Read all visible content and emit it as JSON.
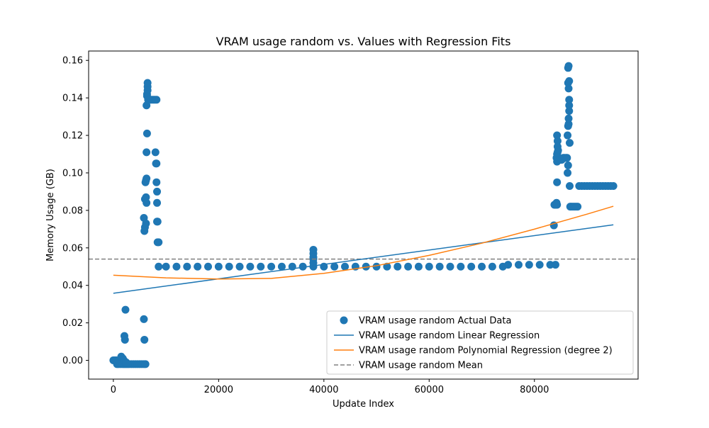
{
  "chart_data": {
    "type": "scatter",
    "title": "VRAM usage random vs. Values with Regression Fits",
    "xlabel": "Update Index",
    "ylabel": "Memory Usage (GB)",
    "xlim": [
      -4700,
      99700
    ],
    "ylim": [
      -0.01,
      0.165
    ],
    "x_ticks": [
      0,
      20000,
      40000,
      60000,
      80000
    ],
    "x_tick_labels": [
      "0",
      "20000",
      "40000",
      "60000",
      "80000"
    ],
    "y_ticks": [
      0.0,
      0.02,
      0.04,
      0.06,
      0.08,
      0.1,
      0.12,
      0.14,
      0.16
    ],
    "y_tick_labels": [
      "0.00",
      "0.02",
      "0.04",
      "0.06",
      "0.08",
      "0.10",
      "0.12",
      "0.14",
      "0.16"
    ],
    "grid": false,
    "legend_position": "lower-right",
    "colors": {
      "actual": "#1f77b4",
      "linear": "#1f77b4",
      "poly": "#ff7f0e",
      "mean": "#808080"
    },
    "series": [
      {
        "name": "VRAM usage random Actual Data",
        "kind": "scatter",
        "points": [
          [
            0,
            0.0
          ],
          [
            300,
            0.0
          ],
          [
            600,
            0.0
          ],
          [
            900,
            -0.001
          ],
          [
            1200,
            0.0
          ],
          [
            1500,
            0.002
          ],
          [
            1800,
            0.001
          ],
          [
            700,
            -0.002
          ],
          [
            1000,
            -0.002
          ],
          [
            1400,
            -0.002
          ],
          [
            1800,
            -0.002
          ],
          [
            2100,
            -0.002
          ],
          [
            2400,
            -0.002
          ],
          [
            2700,
            -0.002
          ],
          [
            3000,
            -0.002
          ],
          [
            3400,
            -0.002
          ],
          [
            3800,
            -0.002
          ],
          [
            4200,
            -0.002
          ],
          [
            4600,
            -0.002
          ],
          [
            5000,
            -0.002
          ],
          [
            5400,
            -0.002
          ],
          [
            5800,
            -0.002
          ],
          [
            6100,
            -0.002
          ],
          [
            2000,
            0.0
          ],
          [
            2400,
            -0.001
          ],
          [
            2100,
            0.013
          ],
          [
            2200,
            0.011
          ],
          [
            2300,
            0.027
          ],
          [
            5800,
            0.022
          ],
          [
            5900,
            0.011
          ],
          [
            5800,
            0.076
          ],
          [
            5900,
            0.069
          ],
          [
            6000,
            0.071
          ],
          [
            6000,
            0.086
          ],
          [
            6100,
            0.095
          ],
          [
            6200,
            0.096
          ],
          [
            6300,
            0.097
          ],
          [
            6200,
            0.087
          ],
          [
            6300,
            0.084
          ],
          [
            6200,
            0.073
          ],
          [
            6300,
            0.111
          ],
          [
            6400,
            0.121
          ],
          [
            6300,
            0.136
          ],
          [
            6400,
            0.141
          ],
          [
            6400,
            0.142
          ],
          [
            6500,
            0.144
          ],
          [
            6500,
            0.146
          ],
          [
            6500,
            0.148
          ],
          [
            6600,
            0.139
          ],
          [
            6800,
            0.139
          ],
          [
            7000,
            0.139
          ],
          [
            7300,
            0.139
          ],
          [
            7600,
            0.139
          ],
          [
            7900,
            0.139
          ],
          [
            8200,
            0.139
          ],
          [
            8000,
            0.111
          ],
          [
            8100,
            0.105
          ],
          [
            8200,
            0.105
          ],
          [
            8200,
            0.095
          ],
          [
            8300,
            0.09
          ],
          [
            8300,
            0.084
          ],
          [
            8300,
            0.074
          ],
          [
            8400,
            0.074
          ],
          [
            8400,
            0.063
          ],
          [
            8600,
            0.063
          ],
          [
            8600,
            0.05
          ],
          [
            10000,
            0.05
          ],
          [
            12000,
            0.05
          ],
          [
            14000,
            0.05
          ],
          [
            16000,
            0.05
          ],
          [
            18000,
            0.05
          ],
          [
            20000,
            0.05
          ],
          [
            22000,
            0.05
          ],
          [
            24000,
            0.05
          ],
          [
            26000,
            0.05
          ],
          [
            28000,
            0.05
          ],
          [
            30000,
            0.05
          ],
          [
            32000,
            0.05
          ],
          [
            34000,
            0.05
          ],
          [
            36000,
            0.05
          ],
          [
            38000,
            0.05
          ],
          [
            38000,
            0.052
          ],
          [
            38000,
            0.054
          ],
          [
            38000,
            0.055
          ],
          [
            38000,
            0.057
          ],
          [
            38000,
            0.059
          ],
          [
            40000,
            0.05
          ],
          [
            42000,
            0.05
          ],
          [
            44000,
            0.05
          ],
          [
            46000,
            0.05
          ],
          [
            48000,
            0.05
          ],
          [
            50000,
            0.05
          ],
          [
            52000,
            0.05
          ],
          [
            54000,
            0.05
          ],
          [
            56000,
            0.05
          ],
          [
            58000,
            0.05
          ],
          [
            60000,
            0.05
          ],
          [
            62000,
            0.05
          ],
          [
            64000,
            0.05
          ],
          [
            66000,
            0.05
          ],
          [
            68000,
            0.05
          ],
          [
            70000,
            0.05
          ],
          [
            72000,
            0.05
          ],
          [
            74000,
            0.05
          ],
          [
            75000,
            0.051
          ],
          [
            77000,
            0.051
          ],
          [
            79000,
            0.051
          ],
          [
            81000,
            0.051
          ],
          [
            83000,
            0.051
          ],
          [
            84000,
            0.051
          ],
          [
            83700,
            0.072
          ],
          [
            83800,
            0.083
          ],
          [
            84000,
            0.083
          ],
          [
            84200,
            0.084
          ],
          [
            84300,
            0.083
          ],
          [
            84300,
            0.095
          ],
          [
            84300,
            0.106
          ],
          [
            84200,
            0.108
          ],
          [
            84300,
            0.11
          ],
          [
            84400,
            0.111
          ],
          [
            84400,
            0.114
          ],
          [
            84400,
            0.117
          ],
          [
            84300,
            0.12
          ],
          [
            84500,
            0.112
          ],
          [
            84600,
            0.107
          ],
          [
            84800,
            0.107
          ],
          [
            85000,
            0.107
          ],
          [
            85200,
            0.107
          ],
          [
            85500,
            0.108
          ],
          [
            85700,
            0.108
          ],
          [
            86000,
            0.108
          ],
          [
            86200,
            0.108
          ],
          [
            86300,
            0.1
          ],
          [
            86400,
            0.104
          ],
          [
            86300,
            0.12
          ],
          [
            86400,
            0.125
          ],
          [
            86500,
            0.126
          ],
          [
            86500,
            0.129
          ],
          [
            86600,
            0.133
          ],
          [
            86600,
            0.136
          ],
          [
            86600,
            0.139
          ],
          [
            86500,
            0.145
          ],
          [
            86400,
            0.148
          ],
          [
            86600,
            0.149
          ],
          [
            86400,
            0.156
          ],
          [
            86500,
            0.157
          ],
          [
            86700,
            0.116
          ],
          [
            86700,
            0.093
          ],
          [
            86800,
            0.082
          ],
          [
            87000,
            0.082
          ],
          [
            87300,
            0.082
          ],
          [
            87600,
            0.082
          ],
          [
            87900,
            0.082
          ],
          [
            88200,
            0.082
          ],
          [
            88500,
            0.093
          ],
          [
            89000,
            0.093
          ],
          [
            89500,
            0.093
          ],
          [
            90000,
            0.093
          ],
          [
            90500,
            0.093
          ],
          [
            91000,
            0.093
          ],
          [
            91500,
            0.093
          ],
          [
            92000,
            0.093
          ],
          [
            92500,
            0.093
          ],
          [
            93000,
            0.093
          ],
          [
            93500,
            0.093
          ],
          [
            94000,
            0.093
          ],
          [
            94500,
            0.093
          ],
          [
            95000,
            0.093
          ]
        ]
      },
      {
        "name": "VRAM usage random Linear Regression",
        "kind": "line",
        "x": [
          0,
          95000
        ],
        "y": [
          0.0358,
          0.0723
        ]
      },
      {
        "name": "VRAM usage random Polynomial Regression (degree 2)",
        "kind": "line",
        "x": [
          0,
          10000,
          20000,
          30000,
          40000,
          50000,
          60000,
          70000,
          80000,
          90000,
          95000
        ],
        "y": [
          0.0454,
          0.044,
          0.0434,
          0.0437,
          0.0464,
          0.0505,
          0.056,
          0.0625,
          0.07,
          0.078,
          0.0822
        ]
      },
      {
        "name": "VRAM usage random Mean",
        "kind": "hline",
        "y": 0.054
      }
    ]
  }
}
